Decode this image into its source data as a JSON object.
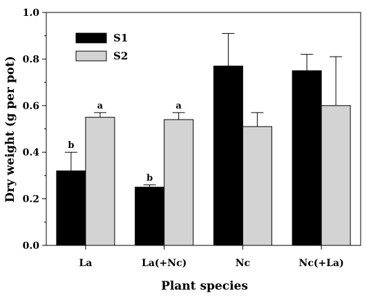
{
  "chart_data": {
    "type": "bar",
    "categories": [
      "La",
      "La(+Nc)",
      "Nc",
      "Nc(+La)"
    ],
    "series": [
      {
        "name": "S1",
        "color": "#000000",
        "values": [
          0.32,
          0.25,
          0.77,
          0.75
        ],
        "errors": [
          0.08,
          0.01,
          0.14,
          0.07
        ],
        "significance": [
          "b",
          "b",
          "",
          ""
        ]
      },
      {
        "name": "S2",
        "color": "#d3d3d3",
        "values": [
          0.55,
          0.54,
          0.51,
          0.6
        ],
        "errors": [
          0.02,
          0.03,
          0.06,
          0.21
        ],
        "significance": [
          "a",
          "a",
          "",
          ""
        ]
      }
    ],
    "xlabel": "Plant species",
    "ylabel": "Dry weight (g per pot)",
    "ylim": [
      0.0,
      1.0
    ],
    "yticks": [
      "0.0",
      "0.2",
      "0.4",
      "0.6",
      "0.8",
      "1.0"
    ],
    "legend_position": "top-left",
    "grid": false
  }
}
